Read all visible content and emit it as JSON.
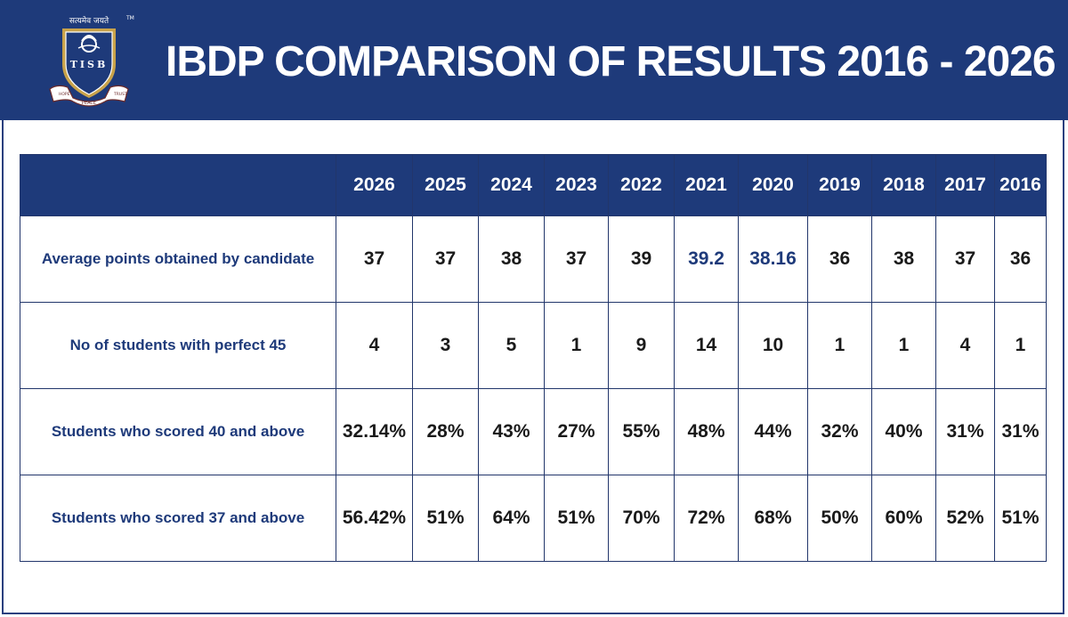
{
  "header": {
    "title": "IBDP COMPARISON OF RESULTS 2016 - 2026",
    "logo": {
      "motto": "सत्यमेव जयते",
      "initials": "TISB",
      "ribbon": [
        "HOPE",
        "PEACE",
        "TRUST"
      ]
    },
    "background_color": "#1e3a7a"
  },
  "table": {
    "years": [
      "2026",
      "2025",
      "2024",
      "2023",
      "2022",
      "2021",
      "2020",
      "2019",
      "2018",
      "2017",
      "2016"
    ],
    "rows": [
      {
        "label": "Average points obtained by candidate",
        "values": [
          "37",
          "37",
          "38",
          "37",
          "39",
          "39.2",
          "38.16",
          "36",
          "38",
          "37",
          "36"
        ]
      },
      {
        "label": "No of students with perfect 45",
        "values": [
          "4",
          "3",
          "5",
          "1",
          "9",
          "14",
          "10",
          "1",
          "1",
          "4",
          "1"
        ]
      },
      {
        "label": "Students who scored 40 and above",
        "values": [
          "32.14%",
          "28%",
          "43%",
          "27%",
          "55%",
          "48%",
          "44%",
          "32%",
          "40%",
          "31%",
          "31%"
        ]
      },
      {
        "label": "Students who scored 37 and above",
        "values": [
          "56.42%",
          "51%",
          "64%",
          "51%",
          "70%",
          "72%",
          "68%",
          "50%",
          "60%",
          "52%",
          "51%"
        ]
      }
    ]
  }
}
